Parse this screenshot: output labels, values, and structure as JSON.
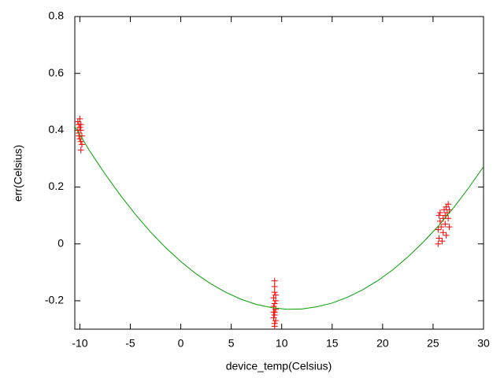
{
  "chart_data": {
    "type": "scatter",
    "x_label": "device_temp(Celsius)",
    "y_label": "err(Celsius)",
    "xlim": [
      -10.5,
      30
    ],
    "xticks": [
      -10,
      -5,
      0,
      5,
      10,
      15,
      20,
      25,
      30
    ],
    "ylim": [
      -0.3,
      0.8
    ],
    "yticks": [
      -0.2,
      0,
      0.2,
      0.4,
      0.6,
      0.8
    ],
    "grid": false,
    "series": [
      {
        "color": "#ff0000",
        "style": "points",
        "marker": "+",
        "x": [
          -10.2,
          -10.1,
          -10.0,
          -9.9,
          -10.1,
          -9.8,
          -10.0,
          -9.9,
          -10.2,
          -9.8,
          -9.9,
          -10.0,
          -10.1,
          -9.9,
          9.3,
          9.3,
          9.3,
          9.2,
          9.4,
          9.3,
          9.2,
          9.4,
          9.3,
          9.3,
          9.2,
          9.4,
          9.3,
          9.3,
          9.4,
          9.2,
          25.5,
          25.6,
          25.5,
          25.7,
          25.6,
          25.8,
          26.0,
          26.0,
          26.1,
          26.2,
          26.3,
          26.4,
          26.5,
          26.5,
          26.6,
          26.3,
          25.9,
          26.2,
          26.6,
          25.7
        ],
        "values": [
          0.43,
          0.42,
          0.41,
          0.4,
          0.39,
          0.38,
          0.37,
          0.36,
          0.4,
          0.35,
          0.33,
          0.44,
          0.38,
          0.42,
          -0.13,
          -0.15,
          -0.17,
          -0.19,
          -0.2,
          -0.21,
          -0.22,
          -0.23,
          -0.24,
          -0.25,
          -0.26,
          -0.27,
          -0.28,
          -0.29,
          -0.18,
          -0.24,
          0.0,
          0.02,
          0.05,
          0.08,
          0.1,
          0.06,
          0.04,
          0.09,
          0.12,
          0.07,
          0.03,
          0.11,
          0.14,
          0.09,
          0.06,
          0.13,
          0.01,
          0.1,
          0.12,
          0.11
        ]
      },
      {
        "color": "#00a000",
        "style": "line",
        "x": [
          -10.5,
          -9,
          -7.5,
          -6,
          -4.5,
          -3,
          -1.5,
          0,
          1.5,
          3,
          4.5,
          6,
          7.5,
          9,
          10.5,
          12,
          13.5,
          15,
          16.5,
          18,
          19.5,
          21,
          22.5,
          24,
          25.5,
          27,
          28.5,
          30
        ],
        "values": [
          0.413,
          0.326,
          0.246,
          0.172,
          0.104,
          0.042,
          -0.013,
          -0.062,
          -0.105,
          -0.141,
          -0.171,
          -0.195,
          -0.213,
          -0.224,
          -0.23,
          -0.229,
          -0.221,
          -0.208,
          -0.188,
          -0.162,
          -0.13,
          -0.091,
          -0.046,
          0.005,
          0.062,
          0.126,
          0.196,
          0.272
        ]
      }
    ]
  }
}
